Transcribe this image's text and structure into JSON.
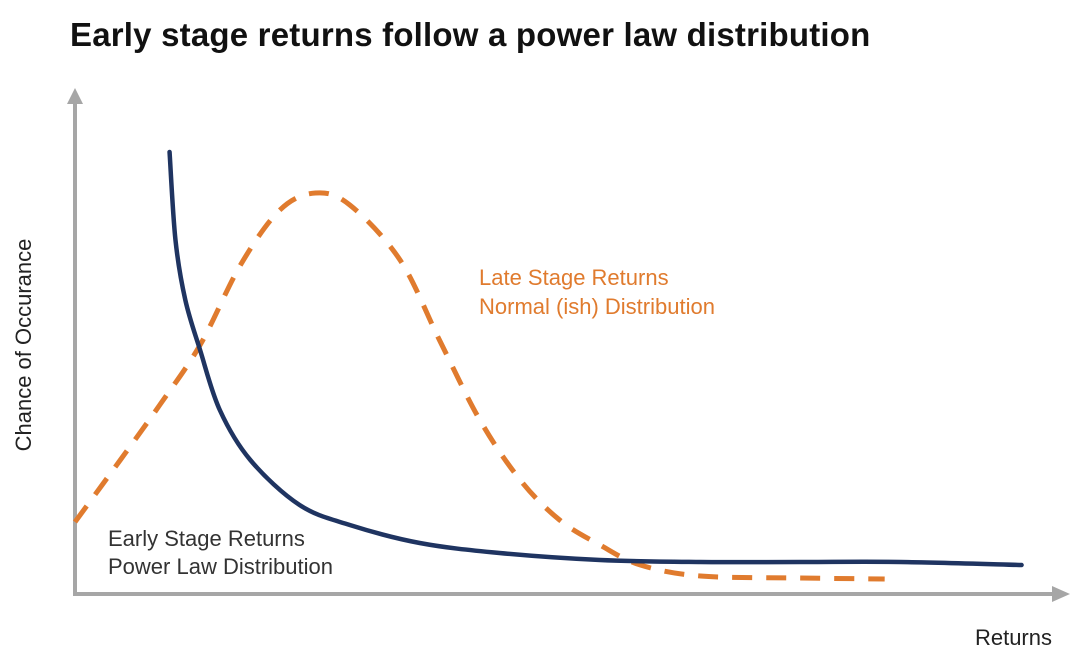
{
  "chart_data": {
    "type": "line",
    "title": "Early stage returns follow a power law distribution",
    "xlabel": "Returns",
    "ylabel": "Chance of Occurance",
    "xlim": [
      0,
      100
    ],
    "ylim": [
      0,
      100
    ],
    "grid": false,
    "ticks": "none",
    "colors": {
      "early": "#1f3461",
      "late": "#e07b2e",
      "axis": "#a6a6a6"
    },
    "series": [
      {
        "name": "Early Stage Returns",
        "subtitle": "Power Law Distribution",
        "style": "solid",
        "x": [
          9.6,
          10.2,
          11.2,
          12.7,
          14.7,
          17.8,
          22.8,
          27.9,
          35,
          43.1,
          53.3,
          63.5,
          73.6,
          83.8,
          96.1
        ],
        "y": [
          88.6,
          71,
          59,
          49,
          37,
          27,
          18,
          14,
          10.4,
          8.4,
          7,
          6.6,
          6.6,
          6.6,
          6
        ]
      },
      {
        "name": "Late Stage Returns",
        "subtitle": "Normal (ish) Distribution",
        "style": "dashed",
        "x": [
          0,
          4.6,
          8.6,
          12.7,
          16.8,
          20.8,
          24.4,
          27.9,
          33,
          37,
          41.1,
          45.2,
          49.2,
          53.3,
          57.4,
          63.5,
          73.6,
          82.2
        ],
        "y": [
          14.6,
          27,
          38,
          50,
          66,
          77,
          80.4,
          78,
          67,
          51,
          35,
          23,
          15,
          10,
          6,
          3.8,
          3.4,
          3.2
        ]
      }
    ]
  }
}
